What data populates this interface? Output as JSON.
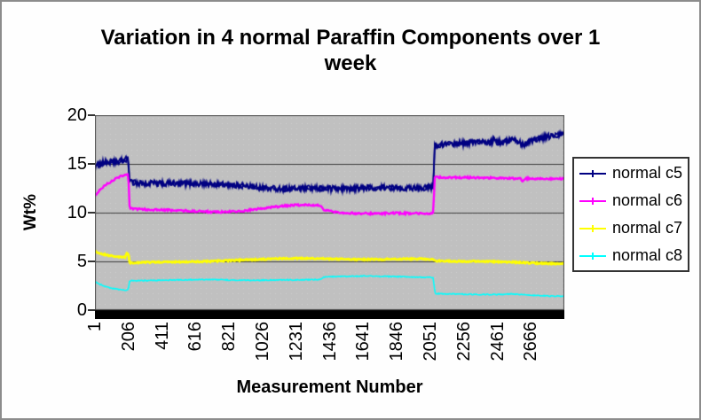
{
  "title": {
    "line1": "Variation in 4 normal Paraffin Components over 1",
    "line2": "week"
  },
  "chart_data": {
    "type": "line",
    "title": "Variation in 4 normal Paraffin Components over 1 week",
    "xlabel": "Measurement Number",
    "ylabel": "Wt%",
    "legend_position": "right",
    "legend_entries": [
      "normal c5",
      "normal c6",
      "normal c7",
      "normal c8"
    ],
    "x_ticks": [
      1,
      206,
      411,
      616,
      821,
      1026,
      1231,
      1436,
      1641,
      1846,
      2051,
      2256,
      2461,
      2666
    ],
    "x_range": [
      1,
      2870
    ],
    "ylim": [
      0,
      20
    ],
    "y_ticks": [
      0,
      5,
      10,
      15,
      20
    ],
    "gridline_values": [
      5,
      10,
      15
    ],
    "grid": "on",
    "plot_bg": "#c0c0c0",
    "gridline_color": "#3c3c3c",
    "baseline_bar_color": "#000000",
    "series": [
      {
        "name": "normal c5",
        "color": "#000082",
        "line_width": 1.8,
        "noise_amp": 0.3,
        "passes": 2,
        "anchors": [
          [
            1,
            14.5
          ],
          [
            20,
            14.9
          ],
          [
            60,
            15.2
          ],
          [
            110,
            15.2
          ],
          [
            150,
            15.25
          ],
          [
            185,
            15.5
          ],
          [
            205,
            15.45
          ],
          [
            212,
            13.1
          ],
          [
            300,
            13.0
          ],
          [
            500,
            13.0
          ],
          [
            700,
            12.95
          ],
          [
            850,
            12.85
          ],
          [
            1000,
            12.6
          ],
          [
            1150,
            12.45
          ],
          [
            1300,
            12.5
          ],
          [
            1450,
            12.45
          ],
          [
            1600,
            12.5
          ],
          [
            1750,
            12.6
          ],
          [
            1900,
            12.5
          ],
          [
            2000,
            12.55
          ],
          [
            2068,
            12.6
          ],
          [
            2078,
            16.8
          ],
          [
            2120,
            17.0
          ],
          [
            2200,
            17.05
          ],
          [
            2280,
            17.15
          ],
          [
            2330,
            17.3
          ],
          [
            2430,
            17.2
          ],
          [
            2440,
            17.85
          ],
          [
            2455,
            17.2
          ],
          [
            2500,
            17.25
          ],
          [
            2560,
            17.5
          ],
          [
            2620,
            16.95
          ],
          [
            2680,
            17.5
          ],
          [
            2750,
            17.75
          ],
          [
            2810,
            17.95
          ],
          [
            2870,
            18.05
          ]
        ]
      },
      {
        "name": "normal c6",
        "color": "#ff00ff",
        "line_width": 2.4,
        "noise_amp": 0.1,
        "passes": 1,
        "anchors": [
          [
            1,
            11.75
          ],
          [
            40,
            12.5
          ],
          [
            90,
            13.1
          ],
          [
            140,
            13.6
          ],
          [
            190,
            13.95
          ],
          [
            205,
            13.9
          ],
          [
            213,
            10.4
          ],
          [
            350,
            10.3
          ],
          [
            550,
            10.2
          ],
          [
            750,
            10.05
          ],
          [
            900,
            10.15
          ],
          [
            1050,
            10.5
          ],
          [
            1200,
            10.75
          ],
          [
            1340,
            10.8
          ],
          [
            1385,
            10.75
          ],
          [
            1395,
            10.3
          ],
          [
            1450,
            10.1
          ],
          [
            1550,
            9.95
          ],
          [
            1700,
            9.9
          ],
          [
            1850,
            9.95
          ],
          [
            2000,
            9.9
          ],
          [
            2068,
            9.9
          ],
          [
            2078,
            13.65
          ],
          [
            2150,
            13.6
          ],
          [
            2300,
            13.6
          ],
          [
            2450,
            13.55
          ],
          [
            2600,
            13.5
          ],
          [
            2615,
            13.25
          ],
          [
            2635,
            13.5
          ],
          [
            2750,
            13.5
          ],
          [
            2870,
            13.45
          ]
        ]
      },
      {
        "name": "normal c7",
        "color": "#ffff00",
        "line_width": 2.8,
        "noise_amp": 0.07,
        "passes": 1,
        "anchors": [
          [
            1,
            6.0
          ],
          [
            50,
            5.75
          ],
          [
            100,
            5.55
          ],
          [
            150,
            5.45
          ],
          [
            185,
            5.4
          ],
          [
            195,
            5.85
          ],
          [
            205,
            5.8
          ],
          [
            213,
            4.85
          ],
          [
            300,
            4.9
          ],
          [
            500,
            4.95
          ],
          [
            700,
            5.0
          ],
          [
            850,
            5.1
          ],
          [
            1000,
            5.2
          ],
          [
            1150,
            5.3
          ],
          [
            1300,
            5.3
          ],
          [
            1450,
            5.25
          ],
          [
            1600,
            5.2
          ],
          [
            1750,
            5.2
          ],
          [
            1900,
            5.25
          ],
          [
            2000,
            5.25
          ],
          [
            2068,
            5.2
          ],
          [
            2080,
            5.05
          ],
          [
            2200,
            5.0
          ],
          [
            2350,
            5.0
          ],
          [
            2500,
            4.95
          ],
          [
            2650,
            4.85
          ],
          [
            2750,
            4.8
          ],
          [
            2870,
            4.75
          ]
        ]
      },
      {
        "name": "normal c8",
        "color": "#00ffff",
        "line_width": 1.6,
        "noise_amp": 0.05,
        "passes": 1,
        "anchors": [
          [
            1,
            2.9
          ],
          [
            50,
            2.5
          ],
          [
            100,
            2.25
          ],
          [
            150,
            2.1
          ],
          [
            190,
            2.05
          ],
          [
            205,
            2.1
          ],
          [
            213,
            3.0
          ],
          [
            350,
            3.05
          ],
          [
            500,
            3.1
          ],
          [
            650,
            3.15
          ],
          [
            800,
            3.1
          ],
          [
            950,
            3.05
          ],
          [
            1100,
            3.1
          ],
          [
            1250,
            3.1
          ],
          [
            1380,
            3.15
          ],
          [
            1400,
            3.4
          ],
          [
            1500,
            3.45
          ],
          [
            1650,
            3.5
          ],
          [
            1800,
            3.45
          ],
          [
            1950,
            3.4
          ],
          [
            2068,
            3.35
          ],
          [
            2080,
            1.7
          ],
          [
            2200,
            1.65
          ],
          [
            2350,
            1.6
          ],
          [
            2500,
            1.6
          ],
          [
            2550,
            1.68
          ],
          [
            2600,
            1.6
          ],
          [
            2700,
            1.5
          ],
          [
            2870,
            1.4
          ]
        ]
      }
    ]
  }
}
